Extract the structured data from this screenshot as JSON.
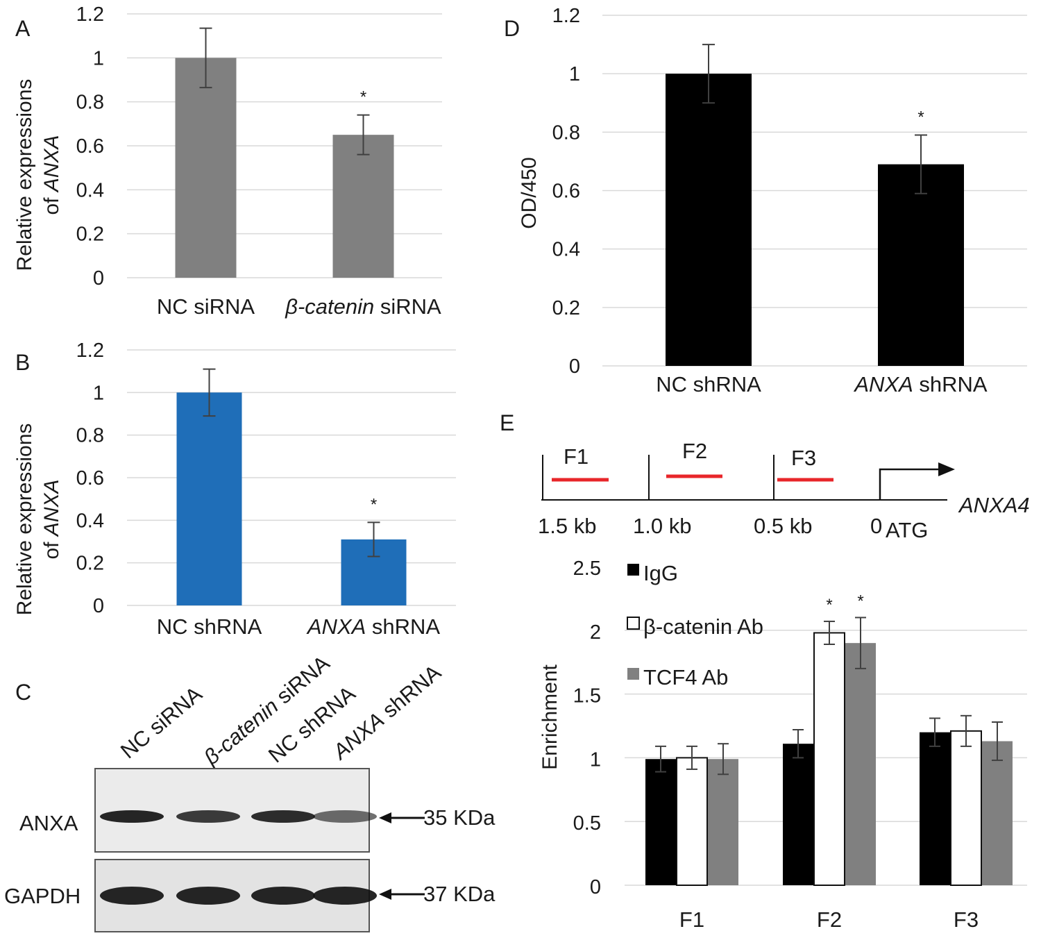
{
  "chart_data": [
    {
      "panel": "A",
      "type": "bar",
      "categories": [
        "NC siRNA",
        "β-catenin siRNA"
      ],
      "category_parts": [
        {
          "italic": "",
          "rest": "NC siRNA"
        },
        {
          "italic": "β-catenin",
          "rest": " siRNA"
        }
      ],
      "values": [
        1.0,
        0.65
      ],
      "errors": [
        0.135,
        0.09
      ],
      "significance": [
        "",
        "*"
      ],
      "ylabel_line1": "Relative expressions",
      "ylabel_line2_prefix": "of ",
      "ylabel_line2_italic": "ANXA",
      "ylim": [
        0,
        1.2
      ],
      "yticks": [
        "0",
        "0.2",
        "0.4",
        "0.6",
        "0.8",
        "1",
        "1.2"
      ],
      "color": "#808080"
    },
    {
      "panel": "B",
      "type": "bar",
      "categories": [
        "NC shRNA",
        "ANXA shRNA"
      ],
      "category_parts": [
        {
          "italic": "",
          "rest": "NC shRNA"
        },
        {
          "italic": "ANXA",
          "rest": " shRNA"
        }
      ],
      "values": [
        1.0,
        0.31
      ],
      "errors": [
        0.11,
        0.08
      ],
      "significance": [
        "",
        "*"
      ],
      "ylabel_line1": "Relative expressions",
      "ylabel_line2_prefix": "of ",
      "ylabel_line2_italic": "ANXA",
      "ylim": [
        0,
        1.2
      ],
      "yticks": [
        "0",
        "0.2",
        "0.4",
        "0.6",
        "0.8",
        "1",
        "1.2"
      ],
      "color": "#1f6eb8"
    },
    {
      "panel": "D",
      "type": "bar",
      "categories": [
        "NC shRNA",
        "ANXA shRNA"
      ],
      "category_parts": [
        {
          "italic": "",
          "rest": "NC shRNA"
        },
        {
          "italic": "ANXA",
          "rest": " shRNA"
        }
      ],
      "values": [
        1.0,
        0.69
      ],
      "errors": [
        0.1,
        0.1
      ],
      "significance": [
        "",
        "*"
      ],
      "ylabel": "OD/450",
      "ylim": [
        0,
        1.2
      ],
      "yticks": [
        "0",
        "0.2",
        "0.4",
        "0.6",
        "0.8",
        "1",
        "1.2"
      ],
      "color": "#000000"
    },
    {
      "panel": "E",
      "type": "bar",
      "categories": [
        "F1",
        "F2",
        "F3"
      ],
      "series": [
        {
          "name": "IgG",
          "values": [
            0.99,
            1.11,
            1.2
          ],
          "errors": [
            0.1,
            0.11,
            0.11
          ],
          "significance": [
            "",
            "",
            ""
          ],
          "color": "#000000"
        },
        {
          "name": "β-catenin Ab",
          "values": [
            1.0,
            1.98,
            1.21
          ],
          "errors": [
            0.09,
            0.09,
            0.12
          ],
          "significance": [
            "",
            "*",
            ""
          ],
          "color": "#ffffff"
        },
        {
          "name": "TCF4 Ab",
          "values": [
            0.99,
            1.9,
            1.13
          ],
          "errors": [
            0.12,
            0.2,
            0.15
          ],
          "significance": [
            "",
            "*",
            ""
          ],
          "color": "#808080"
        }
      ],
      "ylabel": "Enrichment",
      "ylim": [
        0,
        2.5
      ],
      "yticks": [
        "0",
        "0.5",
        "1",
        "1.5",
        "2",
        "2.5"
      ],
      "legend_position": "top-left"
    }
  ],
  "panel_labels": {
    "a": "A",
    "b": "B",
    "c": "C",
    "d": "D",
    "e": "E"
  },
  "western_blot": {
    "lane_labels": [
      "NC siRNA",
      "β-catenin siRNA",
      "NC shRNA",
      "ANXA shRNA"
    ],
    "lane_parts": [
      {
        "italic": "",
        "rest": "NC siRNA"
      },
      {
        "italic": "β-catenin",
        "rest": " siRNA"
      },
      {
        "italic": "",
        "rest": "NC shRNA"
      },
      {
        "italic": "ANXA",
        "rest": " shRNA"
      }
    ],
    "rows": [
      {
        "protein": "ANXA",
        "size": "35 KDa",
        "intensity": [
          0.95,
          0.8,
          0.9,
          0.5
        ]
      },
      {
        "protein": "GAPDH",
        "size": "37 KDa",
        "intensity": [
          0.95,
          0.95,
          0.95,
          0.95
        ]
      }
    ]
  },
  "promoter_diagram": {
    "fragments": [
      "F1",
      "F2",
      "F3"
    ],
    "positions": [
      "1.5 kb",
      "1.0 kb",
      "0.5 kb",
      "0"
    ],
    "start_codon": "ATG",
    "gene": "ANXA4",
    "fragment_color": "#e8262a"
  }
}
